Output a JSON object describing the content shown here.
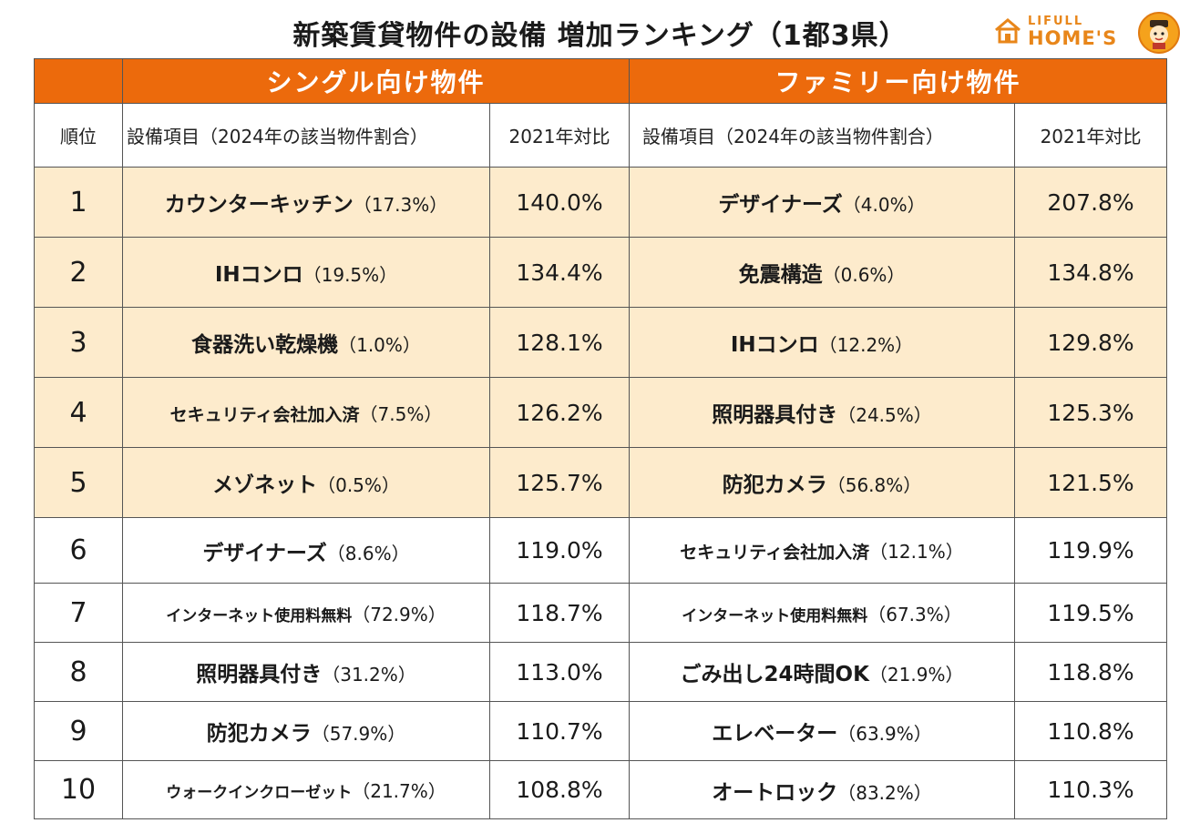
{
  "title": "新築賃貸物件の設備 増加ランキング（1都3県）",
  "logo": {
    "small": "LIFULL",
    "big": "HOME'S",
    "icon": "house-icon",
    "mascot": "mascot-icon",
    "color": "#e8861a"
  },
  "headers": {
    "single": "シングル向け物件",
    "family": "ファミリー向け物件",
    "rank": "順位",
    "item": "設備項目（2024年の該当物件割合）",
    "ratio": "2021年対比"
  },
  "colors": {
    "header_bg": "#ec6a0c",
    "top5_bg": "#fdebcc"
  },
  "rows": [
    {
      "rank": "1",
      "single_item": "カウンターキッチン",
      "single_pct": "（17.3%）",
      "single_ratio": "140.0%",
      "family_item": "デザイナーズ",
      "family_pct": "（4.0%）",
      "family_ratio": "207.8%"
    },
    {
      "rank": "2",
      "single_item": "IHコンロ",
      "single_pct": "（19.5%）",
      "single_ratio": "134.4%",
      "family_item": "免震構造",
      "family_pct": "（0.6%）",
      "family_ratio": "134.8%"
    },
    {
      "rank": "3",
      "single_item": "食器洗い乾燥機",
      "single_pct": "（1.0%）",
      "single_ratio": "128.1%",
      "family_item": "IHコンロ",
      "family_pct": "（12.2%）",
      "family_ratio": "129.8%"
    },
    {
      "rank": "4",
      "single_item": "セキュリティ会社加入済",
      "single_pct": "（7.5%）",
      "single_ratio": "126.2%",
      "family_item": "照明器具付き",
      "family_pct": "（24.5%）",
      "family_ratio": "125.3%"
    },
    {
      "rank": "5",
      "single_item": "メゾネット",
      "single_pct": "（0.5%）",
      "single_ratio": "125.7%",
      "family_item": "防犯カメラ",
      "family_pct": "（56.8%）",
      "family_ratio": "121.5%"
    },
    {
      "rank": "6",
      "single_item": "デザイナーズ",
      "single_pct": "（8.6%）",
      "single_ratio": "119.0%",
      "family_item": "セキュリティ会社加入済",
      "family_pct": "（12.1%）",
      "family_ratio": "119.9%"
    },
    {
      "rank": "7",
      "single_item": "インターネット使用料無料",
      "single_pct": "（72.9%）",
      "single_ratio": "118.7%",
      "family_item": "インターネット使用料無料",
      "family_pct": "（67.3%）",
      "family_ratio": "119.5%"
    },
    {
      "rank": "8",
      "single_item": "照明器具付き",
      "single_pct": "（31.2%）",
      "single_ratio": "113.0%",
      "family_item": "ごみ出し24時間OK",
      "family_pct": "（21.9%）",
      "family_ratio": "118.8%"
    },
    {
      "rank": "9",
      "single_item": "防犯カメラ",
      "single_pct": "（57.9%）",
      "single_ratio": "110.7%",
      "family_item": "エレベーター",
      "family_pct": "（63.9%）",
      "family_ratio": "110.8%"
    },
    {
      "rank": "10",
      "single_item": "ウォークインクローゼット",
      "single_pct": "（21.7%）",
      "single_ratio": "108.8%",
      "family_item": "オートロック",
      "family_pct": "（83.2%）",
      "family_ratio": "110.3%"
    }
  ]
}
